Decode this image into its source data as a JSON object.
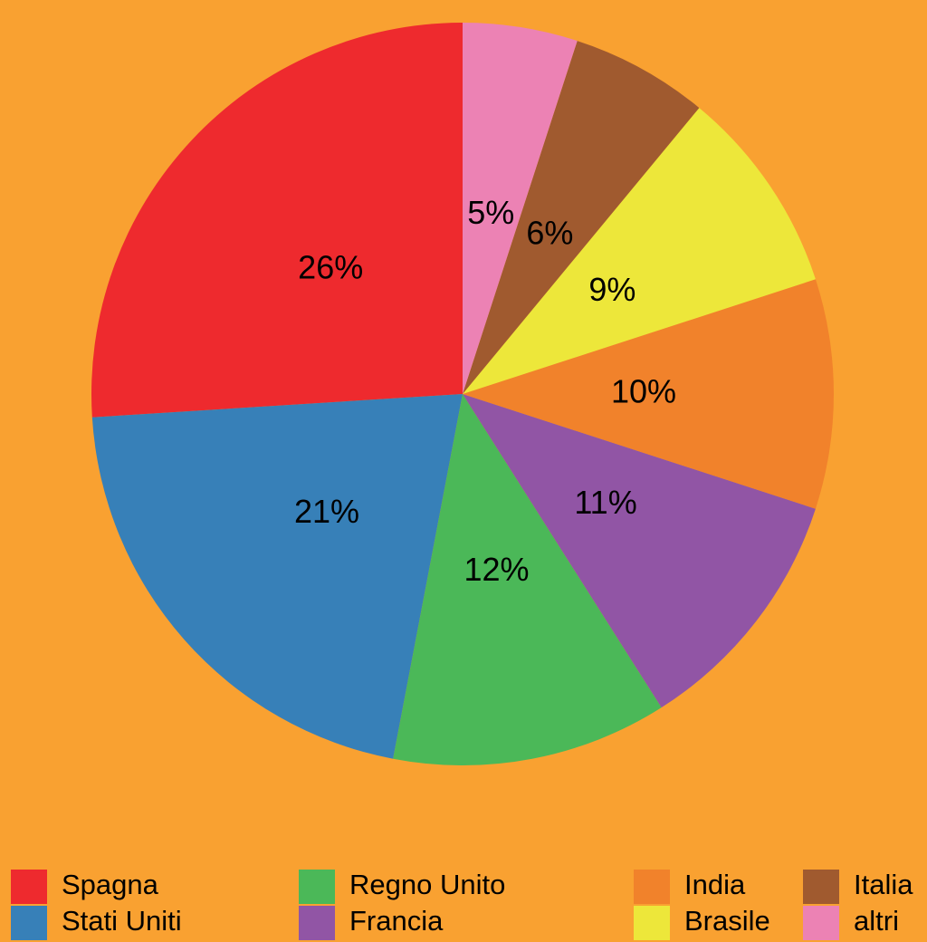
{
  "chart_data": {
    "type": "pie",
    "categories": [
      "Spagna",
      "Stati Uniti",
      "Regno Unito",
      "Francia",
      "India",
      "Brasile",
      "Italia",
      "altri"
    ],
    "values": [
      26,
      21,
      12,
      11,
      10,
      9,
      6,
      5
    ],
    "value_labels": [
      "26%",
      "21%",
      "12%",
      "11%",
      "10%",
      "9%",
      "6%",
      "5%"
    ],
    "colors": [
      "#ee2a2e",
      "#3780b8",
      "#4bb858",
      "#9155a5",
      "#f1822b",
      "#ede73a",
      "#a05a2f",
      "#ec82b4"
    ],
    "legend": "bottom"
  }
}
